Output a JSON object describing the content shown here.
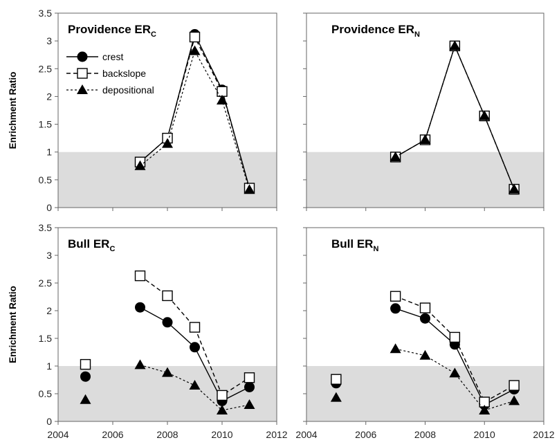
{
  "colors": {
    "band": "#dcdcdc",
    "frame": "#666666",
    "marker": "#000000",
    "open_marker_fill": "#ffffff"
  },
  "chart_data": {
    "type": "line",
    "shared": {
      "ylabel": "Enrichment Ratio",
      "ylim": [
        0,
        3.5
      ],
      "yticks": [
        "0",
        "0.5",
        "1",
        "1.5",
        "2",
        "2.5",
        "3",
        "3.5"
      ],
      "xlim": [
        2004,
        2012
      ],
      "xticks": [
        "2004",
        "2006",
        "2008",
        "2010",
        "2012"
      ],
      "shaded_band": [
        0,
        1
      ],
      "legend": [
        {
          "name": "crest",
          "marker": "filled-circle",
          "line": "solid"
        },
        {
          "name": "backslope",
          "marker": "open-square",
          "line": "dashed"
        },
        {
          "name": "depositional",
          "marker": "filled-triangle",
          "line": "dotted"
        }
      ]
    },
    "panels": [
      {
        "title_main": "Providence ER",
        "title_sub": "C",
        "series": [
          {
            "name": "crest",
            "x": [
              2007,
              2008,
              2009,
              2010,
              2011
            ],
            "y": [
              0.82,
              1.25,
              3.12,
              2.12,
              0.35
            ],
            "line": [
              true,
              true,
              true,
              true,
              true
            ]
          },
          {
            "name": "backslope",
            "x": [
              2007,
              2008,
              2009,
              2010,
              2011
            ],
            "y": [
              0.82,
              1.25,
              3.07,
              2.09,
              0.35
            ],
            "line": [
              true,
              true,
              true,
              true,
              true
            ]
          },
          {
            "name": "depositional",
            "x": [
              2007,
              2008,
              2009,
              2010,
              2011
            ],
            "y": [
              0.75,
              1.15,
              2.82,
              1.93,
              0.32
            ],
            "line": [
              true,
              true,
              true,
              true,
              true
            ]
          }
        ]
      },
      {
        "title_main": "Providence ER",
        "title_sub": "N",
        "series": [
          {
            "name": "crest",
            "x": [
              2007,
              2008,
              2009,
              2010,
              2011
            ],
            "y": [
              0.91,
              1.22,
              2.91,
              1.65,
              0.33
            ],
            "line": [
              true,
              true,
              true,
              true,
              true
            ]
          },
          {
            "name": "backslope",
            "x": [
              2007,
              2008,
              2009,
              2010,
              2011
            ],
            "y": [
              0.91,
              1.22,
              2.91,
              1.65,
              0.33
            ],
            "line": [
              true,
              true,
              true,
              true,
              true
            ]
          },
          {
            "name": "depositional",
            "x": [
              2007,
              2008,
              2009,
              2010,
              2011
            ],
            "y": [
              0.91,
              1.22,
              2.91,
              1.65,
              0.33
            ],
            "line": [
              true,
              true,
              true,
              true,
              true
            ]
          }
        ]
      },
      {
        "title_main": "Bull ER",
        "title_sub": "C",
        "series": [
          {
            "name": "crest",
            "x": [
              2005,
              2007,
              2008,
              2009,
              2010,
              2011
            ],
            "y": [
              0.81,
              2.06,
              1.79,
              1.34,
              0.37,
              0.62
            ],
            "line": [
              false,
              true,
              true,
              true,
              true,
              true
            ]
          },
          {
            "name": "backslope",
            "x": [
              2005,
              2007,
              2008,
              2009,
              2010,
              2011
            ],
            "y": [
              1.03,
              2.63,
              2.27,
              1.7,
              0.47,
              0.79
            ],
            "line": [
              false,
              true,
              true,
              true,
              true,
              true
            ]
          },
          {
            "name": "depositional",
            "x": [
              2005,
              2007,
              2008,
              2009,
              2010,
              2011
            ],
            "y": [
              0.39,
              1.02,
              0.88,
              0.65,
              0.2,
              0.3
            ],
            "line": [
              false,
              true,
              true,
              true,
              true,
              true
            ]
          }
        ]
      },
      {
        "title_main": "Bull ER",
        "title_sub": "N",
        "series": [
          {
            "name": "crest",
            "x": [
              2005,
              2007,
              2008,
              2009,
              2010,
              2011
            ],
            "y": [
              0.69,
              2.04,
              1.86,
              1.39,
              0.3,
              0.58
            ],
            "line": [
              false,
              true,
              true,
              true,
              true,
              true
            ]
          },
          {
            "name": "backslope",
            "x": [
              2005,
              2007,
              2008,
              2009,
              2010,
              2011
            ],
            "y": [
              0.76,
              2.26,
              2.05,
              1.52,
              0.35,
              0.65
            ],
            "line": [
              false,
              true,
              true,
              true,
              true,
              true
            ]
          },
          {
            "name": "depositional",
            "x": [
              2005,
              2007,
              2008,
              2009,
              2010,
              2011
            ],
            "y": [
              0.43,
              1.31,
              1.19,
              0.87,
              0.2,
              0.37
            ],
            "line": [
              false,
              true,
              true,
              true,
              true,
              true
            ]
          }
        ]
      }
    ]
  }
}
